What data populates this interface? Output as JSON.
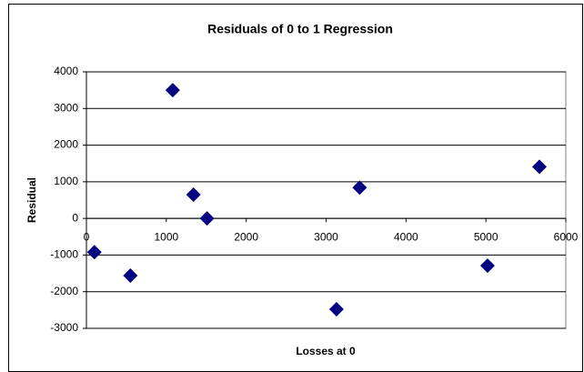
{
  "chart_data": {
    "type": "scatter",
    "title": "Residuals of 0 to 1 Regression",
    "x_label": "Losses at 0",
    "y_label": "Residual",
    "x": [
      100,
      550,
      1080,
      1340,
      1510,
      3130,
      3420,
      5020,
      5670
    ],
    "values": [
      -920,
      -1560,
      3500,
      650,
      0,
      -2480,
      840,
      -1290,
      1410
    ],
    "color": "#000080",
    "marker": "diamond",
    "xlim": [
      0,
      6000
    ],
    "xticks": [
      0,
      1000,
      2000,
      3000,
      4000,
      5000,
      6000
    ],
    "ylim": [
      -3000,
      4000
    ],
    "yticks": [
      -3000,
      -2000,
      -1000,
      0,
      1000,
      2000,
      3000,
      4000
    ],
    "grid": true
  }
}
